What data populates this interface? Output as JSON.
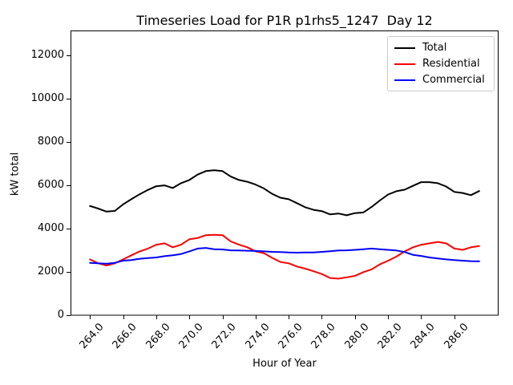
{
  "window": {
    "title": "Timeseries Load for P1R p1rhs5_1247  Day 12",
    "background": "#ffffff"
  },
  "chart_data": {
    "type": "line",
    "title": "Timeseries Load for P1R p1rhs5_1247  Day 12",
    "xlabel": "Hour of Year",
    "ylabel": "kW total",
    "grid": false,
    "legend_position": "upper right",
    "xlim": [
      262.83,
      288.67
    ],
    "ylim": [
      0,
      13160
    ],
    "x_tick_values": [
      264,
      266,
      268,
      270,
      272,
      274,
      276,
      278,
      280,
      282,
      284,
      286
    ],
    "x_tick_labels": [
      "264.0",
      "266.0",
      "268.0",
      "270.0",
      "272.0",
      "274.0",
      "276.0",
      "278.0",
      "280.0",
      "282.0",
      "284.0",
      "286.0"
    ],
    "y_tick_values": [
      0,
      2000,
      4000,
      6000,
      8000,
      10000,
      12000
    ],
    "y_tick_labels": [
      "0",
      "2000",
      "4000",
      "6000",
      "8000",
      "10000",
      "12000"
    ],
    "x": [
      264,
      264.5,
      265,
      265.5,
      266,
      266.5,
      267,
      267.5,
      268,
      268.5,
      269,
      269.5,
      270,
      270.5,
      271,
      271.5,
      272,
      272.5,
      273,
      273.5,
      274,
      274.5,
      275,
      275.5,
      276,
      276.5,
      277,
      277.5,
      278,
      278.5,
      279,
      279.5,
      280,
      280.5,
      281,
      281.5,
      282,
      282.5,
      283,
      283.5,
      284,
      284.5,
      285,
      285.5,
      286,
      286.5,
      287,
      287.5
    ],
    "series": [
      {
        "name": "Total",
        "color": "#000000",
        "values": [
          5050,
          4930,
          4790,
          4820,
          5120,
          5360,
          5590,
          5790,
          5960,
          6000,
          5880,
          6100,
          6250,
          6500,
          6660,
          6700,
          6660,
          6410,
          6250,
          6170,
          6040,
          5860,
          5610,
          5430,
          5360,
          5180,
          4990,
          4870,
          4810,
          4660,
          4700,
          4620,
          4720,
          4750,
          5000,
          5300,
          5580,
          5730,
          5800,
          5980,
          6150,
          6150,
          6100,
          5950,
          5700,
          5650,
          5550,
          5740
        ]
      },
      {
        "name": "Residential",
        "color": "#ff0000",
        "values": [
          2580,
          2400,
          2300,
          2400,
          2580,
          2770,
          2950,
          3080,
          3260,
          3320,
          3140,
          3260,
          3510,
          3570,
          3700,
          3720,
          3700,
          3410,
          3260,
          3140,
          2950,
          2870,
          2650,
          2460,
          2400,
          2250,
          2150,
          2030,
          1900,
          1720,
          1690,
          1750,
          1820,
          1990,
          2120,
          2350,
          2520,
          2710,
          2950,
          3140,
          3260,
          3320,
          3390,
          3320,
          3080,
          3020,
          3140,
          3200
        ]
      },
      {
        "name": "Commercial",
        "color": "#0000ff",
        "values": [
          2420,
          2400,
          2380,
          2420,
          2520,
          2550,
          2610,
          2640,
          2670,
          2730,
          2770,
          2830,
          2950,
          3080,
          3110,
          3050,
          3040,
          3000,
          2990,
          2980,
          2970,
          2950,
          2930,
          2920,
          2900,
          2890,
          2900,
          2900,
          2930,
          2960,
          2990,
          3000,
          3020,
          3050,
          3080,
          3050,
          3020,
          2990,
          2920,
          2790,
          2740,
          2670,
          2620,
          2580,
          2550,
          2520,
          2500,
          2490
        ]
      }
    ]
  }
}
